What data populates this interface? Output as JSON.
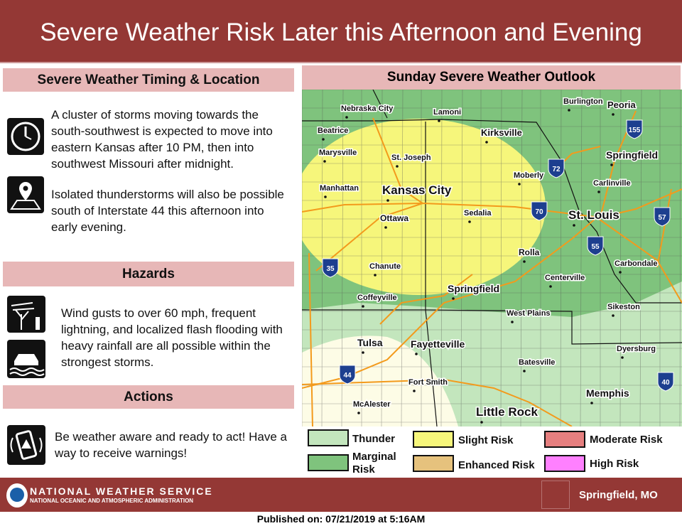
{
  "header": {
    "title": "Severe Weather Risk Later this Afternoon and Evening"
  },
  "left": {
    "timing_title": "Severe Weather Timing & Location",
    "timing_text_1": "A cluster of storms moving towards the south-southwest is expected to move into eastern Kansas after 10 PM,  then into southwest Missouri after midnight.",
    "timing_text_2": "Isolated thunderstorms will also be possible south of Interstate 44 this afternoon into early evening.",
    "hazards_title": "Hazards",
    "hazards_text": "Wind gusts to over 60 mph, frequent lightning, and localized flash flooding with heavy rainfall are all possible within the strongest storms.",
    "actions_title": "Actions",
    "actions_text": "Be weather aware and ready to act! Have a way to receive warnings!",
    "icons": [
      "clock-icon",
      "map-pin-icon",
      "wind-tree-icon",
      "flooded-car-icon",
      "phone-alert-icon"
    ]
  },
  "map": {
    "title": "Sunday Severe Weather Outlook",
    "cities": [
      "Nebraska City",
      "Lamoni",
      "Burlington",
      "Peoria",
      "Beatrice",
      "Kirksville",
      "Marysville",
      "St. Joseph",
      "Springfield",
      "Moberly",
      "Carlinville",
      "Manhattan",
      "Kansas City",
      "Sedalia",
      "St. Louis",
      "Ottawa",
      "Rolla",
      "Carbondale",
      "Chanute",
      "Centerville",
      "Springfield",
      "Coffeyville",
      "West Plains",
      "Sikeston",
      "Tulsa",
      "Fayetteville",
      "Dyersburg",
      "Batesville",
      "Fort Smith",
      "McAlester",
      "Memphis",
      "Little Rock"
    ],
    "interstates": [
      "155",
      "72",
      "70",
      "57",
      "55",
      "35",
      "44",
      "40"
    ],
    "colors": {
      "thunder": "#c3e6bd",
      "marginal": "#7fc37d",
      "slight": "#f6f67b",
      "enhanced": "#e6c27d",
      "moderate": "#e67f7f",
      "high": "#ff80ff",
      "general": "#fdfce6"
    }
  },
  "legend": {
    "thunder": "Thunder",
    "marginal": "Marginal Risk",
    "slight": "Slight Risk",
    "enhanced": "Enhanced Risk",
    "moderate": "Moderate Risk",
    "high": "High Risk"
  },
  "footer": {
    "agency": "NATIONAL WEATHER SERVICE",
    "subagency": "NATIONAL OCEANIC AND ATMOSPHERIC ADMINISTRATION",
    "office": "Springfield, MO",
    "published": "Published on: 07/21/2019 at 5:16AM"
  }
}
